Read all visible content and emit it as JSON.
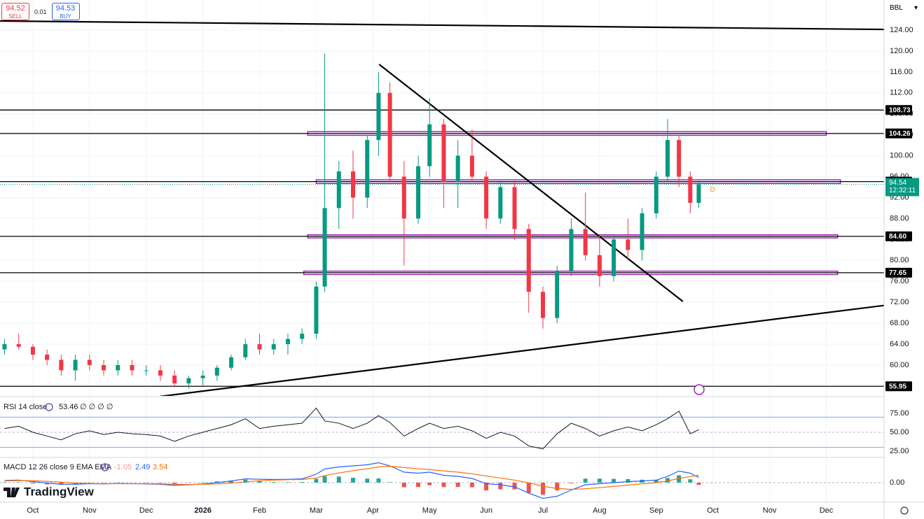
{
  "header": {
    "sell": {
      "price": 94.52,
      "label": "SELL"
    },
    "spread": 0.01,
    "buy": {
      "price": 94.53,
      "label": "BUY"
    },
    "symbol": "BBL",
    "logo": "TradingView"
  },
  "chart_data": [
    {
      "type": "candlestick",
      "x": [
        -0.5,
        -0.25,
        0,
        0.25,
        0.5,
        0.75,
        1,
        1.25,
        1.5,
        1.75,
        2,
        2.25,
        2.5,
        2.75,
        3,
        3.25,
        3.5,
        3.75,
        4,
        4.25,
        4.5,
        4.75,
        5,
        5.15,
        5.4,
        5.65,
        5.9,
        6.1,
        6.3,
        6.55,
        6.8,
        7,
        7.25,
        7.5,
        7.75,
        8,
        8.25,
        8.5,
        8.75,
        9,
        9.25,
        9.5,
        9.75,
        10,
        10.25,
        10.5,
        10.75,
        11,
        11.2,
        11.4,
        11.6,
        11.75
      ],
      "open": [
        63,
        64,
        63.5,
        62,
        61,
        59,
        61,
        60,
        59,
        60,
        59,
        59,
        58,
        56.5,
        57.5,
        58,
        59.5,
        61.5,
        64,
        63,
        64,
        65,
        66,
        75,
        90,
        97,
        92,
        103,
        112,
        96,
        88,
        98,
        106,
        95,
        100,
        96,
        88,
        94,
        86,
        74,
        69,
        78,
        86,
        81,
        77,
        84,
        82,
        89,
        96,
        103,
        96,
        91
      ],
      "high": [
        65,
        66,
        64,
        63,
        62,
        62,
        62,
        61,
        61,
        61,
        60,
        60,
        59,
        58,
        59,
        60,
        62,
        65,
        66,
        65,
        66,
        67,
        76,
        119.5,
        99,
        101,
        104,
        116,
        114,
        99,
        100,
        111,
        107,
        103,
        105,
        97,
        95,
        95,
        87,
        75,
        79,
        88,
        93,
        85,
        85,
        88,
        90,
        97,
        107,
        104,
        97,
        95
      ],
      "low": [
        62,
        63,
        61,
        60,
        58,
        57,
        59,
        58,
        58,
        58,
        58,
        57,
        56,
        55.5,
        56,
        57,
        59,
        61,
        62,
        62,
        62,
        64,
        65,
        74,
        86,
        88,
        90,
        100,
        95,
        79,
        87,
        96,
        90,
        90,
        95,
        86,
        87,
        84,
        70,
        67,
        68,
        77,
        80,
        75,
        76,
        80,
        80,
        88,
        95,
        94,
        89,
        90
      ],
      "close": [
        64,
        63.5,
        62,
        61,
        59,
        61,
        60,
        59,
        60,
        59,
        59,
        58,
        56.5,
        57.5,
        58,
        59.5,
        61.5,
        64,
        63,
        64,
        65,
        66,
        75,
        90,
        97,
        92,
        103,
        112,
        96,
        88,
        98,
        106,
        95,
        100,
        96,
        88,
        94,
        86,
        74,
        69,
        78,
        86,
        81,
        77,
        84,
        82,
        89,
        96,
        103,
        96,
        91,
        94.54
      ],
      "up_color": "#089981",
      "down_color": "#f23645",
      "xlim": [
        -0.58,
        15.02
      ],
      "ylim": [
        54.25,
        129.75
      ],
      "xticks": [
        {
          "value": 0,
          "label": "Oct"
        },
        {
          "value": 1,
          "label": "Nov"
        },
        {
          "value": 2,
          "label": "Dec"
        },
        {
          "value": 3,
          "label": "2026"
        },
        {
          "value": 4,
          "label": "Feb"
        },
        {
          "value": 5,
          "label": "Mar"
        },
        {
          "value": 6,
          "label": "Apr"
        },
        {
          "value": 7,
          "label": "May"
        },
        {
          "value": 8,
          "label": "Jun"
        },
        {
          "value": 9,
          "label": "Jul"
        },
        {
          "value": 10,
          "label": "Aug"
        },
        {
          "value": 11,
          "label": "Sep"
        },
        {
          "value": 12,
          "label": "Oct"
        },
        {
          "value": 13,
          "label": "Nov"
        },
        {
          "value": 14,
          "label": "Dec"
        }
      ],
      "yticks": [
        {
          "value": 60,
          "label": "60.00"
        },
        {
          "value": 64,
          "label": "64.00"
        },
        {
          "value": 68,
          "label": "68.00"
        },
        {
          "value": 72,
          "label": "72.00"
        },
        {
          "value": 76,
          "label": "76.00"
        },
        {
          "value": 80,
          "label": "80.00"
        },
        {
          "value": 84,
          "label": "84.00"
        },
        {
          "value": 88,
          "label": "88.00"
        },
        {
          "value": 92,
          "label": "92.00"
        },
        {
          "value": 96,
          "label": "96.00"
        },
        {
          "value": 100,
          "label": "100.00"
        },
        {
          "value": 104,
          "label": "104.00"
        },
        {
          "value": 108,
          "label": "108.00"
        },
        {
          "value": 112,
          "label": "112.00"
        },
        {
          "value": 116,
          "label": "116.00"
        },
        {
          "value": 120,
          "label": "120.00"
        },
        {
          "value": 124,
          "label": "124.00"
        }
      ],
      "grid": true,
      "levels": [
        108.73,
        104.26,
        95.06,
        {
          "value": 84.6,
          "label": "84.60"
        },
        77.65,
        55.95
      ],
      "zones": [
        {
          "x": [
            4.85,
            14.0
          ],
          "y": [
            103.9,
            104.6
          ]
        },
        {
          "x": [
            5.0,
            14.25
          ],
          "y": [
            94.7,
            95.4
          ]
        },
        {
          "x": [
            4.85,
            14.2
          ],
          "y": [
            84.3,
            84.9
          ]
        },
        {
          "x": [
            4.78,
            14.2
          ],
          "y": [
            77.3,
            77.95
          ]
        }
      ],
      "zone_color": "#9c27b0",
      "trendlines": [
        {
          "x": [
            -0.58,
            15.02
          ],
          "y": [
            125.74,
            124.13
          ]
        },
        {
          "x": [
            2.24,
            15.02
          ],
          "y": [
            54.0,
            71.4
          ]
        },
        {
          "x": [
            6.11,
            11.47
          ],
          "y": [
            117.45,
            72.15
          ]
        }
      ],
      "countdown": "12:32:11",
      "annotations": [
        {
          "text": "D",
          "x": 11.95,
          "y": 93.5
        }
      ]
    },
    {
      "type": "line",
      "title": "RSI 14 close",
      "placeholders": "∅ ∅ ∅ ∅",
      "values": [
        55,
        58,
        50,
        45,
        40,
        48,
        52,
        47,
        50,
        48,
        47,
        45,
        38,
        45,
        50,
        55,
        60,
        68,
        55,
        58,
        60,
        62,
        82,
        65,
        62,
        55,
        62,
        72,
        63,
        45,
        55,
        62,
        55,
        58,
        52,
        42,
        50,
        45,
        32,
        28,
        48,
        62,
        55,
        45,
        52,
        57,
        52,
        60,
        68,
        78,
        48,
        53.46
      ],
      "color": "#131722",
      "band_color": "#2962ff",
      "bands": [
        30,
        70
      ],
      "midline": 50,
      "ylim": [
        20.4,
        96.3
      ],
      "yticks": [
        {
          "value": 25,
          "label": "25.00"
        },
        {
          "value": 50,
          "label": "50.00"
        },
        {
          "value": 75,
          "label": "75.00"
        }
      ]
    },
    {
      "type": "macd",
      "title": "MACD 12 26 close 9 EMA EMA",
      "series": [
        {
          "name": "MACD",
          "color": "#2962ff",
          "values": [
            1,
            1.2,
            0.5,
            -0.2,
            -0.8,
            -0.8,
            -0.5,
            -0.6,
            -0.4,
            -0.5,
            -0.6,
            -0.8,
            -1.3,
            -1,
            -0.6,
            0,
            0.8,
            1.8,
            1.6,
            1.5,
            1.6,
            1.8,
            4,
            6.5,
            7.5,
            8,
            8.5,
            9.5,
            8,
            5,
            4.5,
            5,
            3.5,
            3,
            2,
            -0.5,
            -1,
            -2,
            -5,
            -7.5,
            -6.5,
            -3.5,
            -1,
            -0.5,
            0,
            0.5,
            0.8,
            1.2,
            3,
            5.5,
            4.5,
            2.49
          ]
        },
        {
          "name": "Signal",
          "color": "#ff6d00",
          "values": [
            0.8,
            1,
            0.9,
            0.6,
            0.2,
            -0.2,
            -0.4,
            -0.5,
            -0.5,
            -0.5,
            -0.5,
            -0.6,
            -0.8,
            -0.9,
            -0.8,
            -0.6,
            -0.2,
            0.4,
            0.9,
            1.2,
            1.4,
            1.5,
            2.2,
            3.4,
            4.6,
            5.7,
            6.6,
            7.5,
            7.8,
            7.2,
            6.6,
            6.2,
            5.6,
            5,
            4.2,
            3.2,
            2.2,
            1.2,
            -0.1,
            -1.7,
            -2.8,
            -3.2,
            -2.9,
            -2.4,
            -1.8,
            -1.2,
            -0.6,
            0,
            0.8,
            2,
            2.9,
            3.54
          ]
        }
      ],
      "histogram": [
        0.2,
        0.2,
        -0.4,
        -0.8,
        -1,
        -0.6,
        -0.1,
        -0.1,
        0.1,
        0,
        -0.1,
        -0.2,
        -0.5,
        -0.1,
        0.2,
        0.6,
        1,
        1.4,
        0.7,
        0.3,
        0.2,
        0.3,
        1.8,
        3.1,
        2.9,
        2.3,
        1.9,
        2,
        0.2,
        -2.2,
        -2.1,
        -1.2,
        -2.1,
        -2,
        -2.2,
        -3.7,
        -3.2,
        -3.2,
        -4.9,
        -5.8,
        -3.7,
        -0.3,
        1.9,
        1.9,
        1.8,
        1.7,
        1.4,
        1.2,
        2.2,
        3.5,
        1.6,
        -1.05
      ],
      "hist_up": "#26a69a",
      "hist_down": "#ef5350",
      "ylim": [
        -9.33,
        11.67
      ],
      "yticks": [
        {
          "value": 0,
          "label": "0.00"
        }
      ]
    }
  ]
}
